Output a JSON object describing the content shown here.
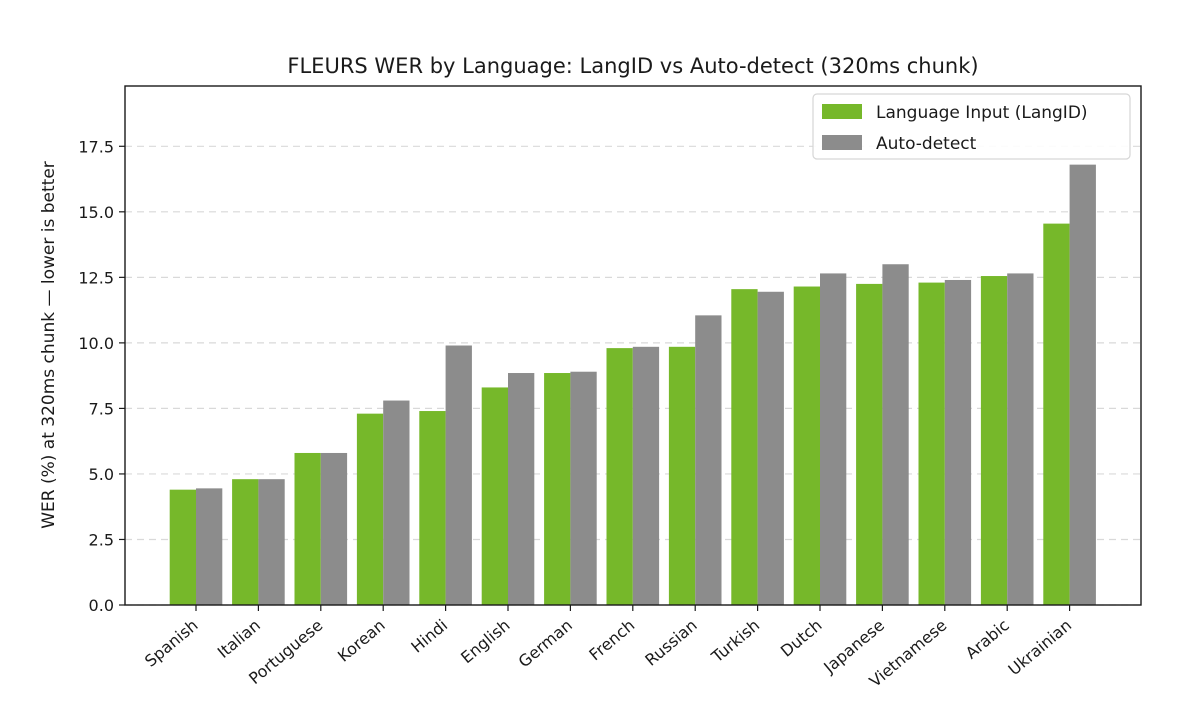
{
  "chart_data": {
    "type": "bar",
    "title": "FLEURS WER by Language: LangID vs Auto-detect (320ms chunk)",
    "xlabel": "",
    "ylabel": "WER (%) at 320ms chunk  —  lower is better",
    "ylim": [
      0,
      19.8
    ],
    "yticks": [
      "0.0",
      "2.5",
      "5.0",
      "7.5",
      "10.0",
      "12.5",
      "15.0",
      "17.5"
    ],
    "ytick_values": [
      0,
      2.5,
      5.0,
      7.5,
      10.0,
      12.5,
      15.0,
      17.5
    ],
    "grid": "y-dashed",
    "legend_position": "top-right",
    "categories": [
      "Spanish",
      "Italian",
      "Portuguese",
      "Korean",
      "Hindi",
      "English",
      "German",
      "French",
      "Russian",
      "Turkish",
      "Dutch",
      "Japanese",
      "Vietnamese",
      "Arabic",
      "Ukrainian"
    ],
    "series": [
      {
        "name": "Language Input (LangID)",
        "color": "#76b82a",
        "values": [
          4.4,
          4.8,
          5.8,
          7.3,
          7.4,
          8.3,
          8.85,
          9.8,
          9.85,
          12.05,
          12.15,
          12.25,
          12.3,
          12.55,
          14.55
        ]
      },
      {
        "name": "Auto-detect",
        "color": "#8c8c8c",
        "values": [
          4.45,
          4.8,
          5.8,
          7.8,
          9.9,
          8.85,
          8.9,
          9.85,
          11.05,
          11.95,
          12.65,
          13.0,
          12.4,
          12.65,
          16.8
        ]
      }
    ]
  }
}
